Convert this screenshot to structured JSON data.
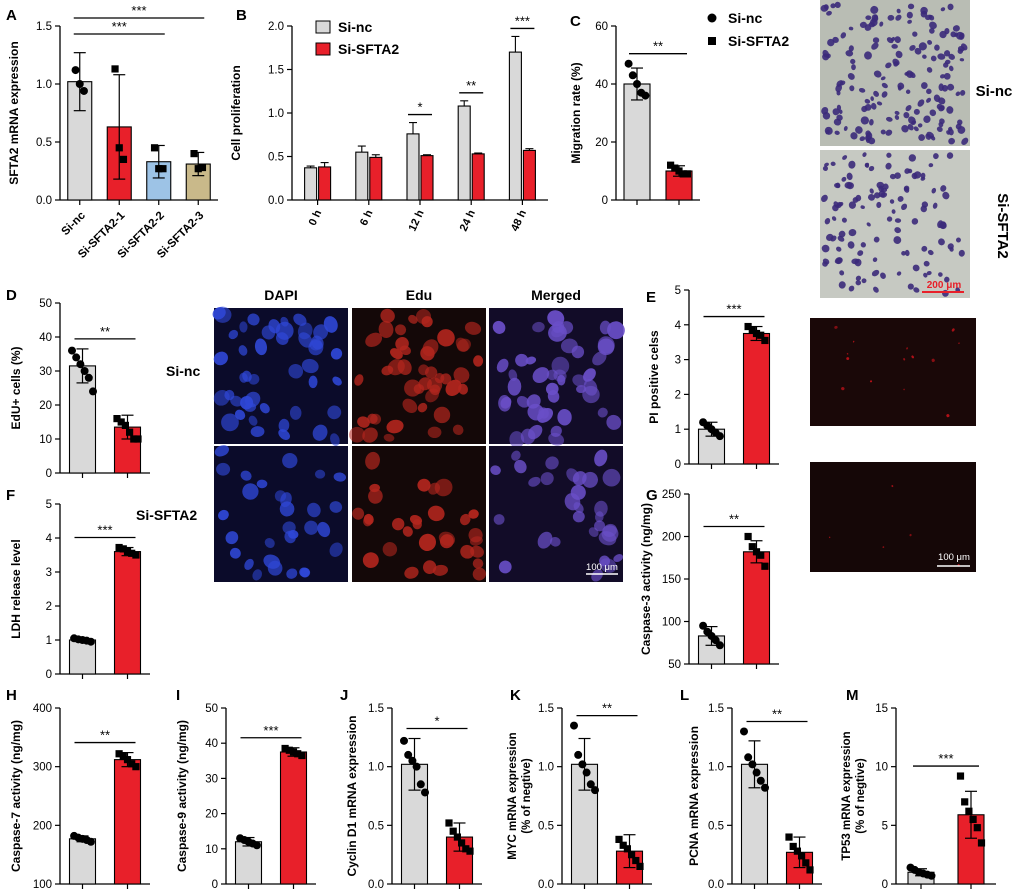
{
  "chart_data": [
    {
      "panel": "A",
      "type": "bar",
      "ylabel": "SFTA2 mRNA expression",
      "categories": [
        "Si-nc",
        "Si-SFTA2-1",
        "Si-SFTA2-2",
        "Si-SFTA2-3"
      ],
      "values": [
        1.02,
        0.63,
        0.33,
        0.31
      ],
      "errors": [
        0.25,
        0.45,
        0.14,
        0.1
      ],
      "colors": [
        "#d9d9d9",
        "#e8202a",
        "#9dc3e6",
        "#c9b98a"
      ],
      "points": [
        [
          1.12,
          1.0,
          0.94
        ],
        [
          1.13,
          0.45,
          0.35
        ],
        [
          0.45,
          0.27,
          0.27
        ],
        [
          0.4,
          0.27,
          0.28
        ]
      ],
      "ylim": [
        0,
        1.5
      ],
      "yticks": [
        0,
        0.5,
        1.0,
        1.5
      ],
      "sig": [
        {
          "from": 0,
          "to": 2,
          "label": "***"
        },
        {
          "from": 0,
          "to": 3,
          "label": "***"
        }
      ]
    },
    {
      "panel": "B",
      "type": "bar",
      "ylabel": "Cell proliferation",
      "categories": [
        "0 h",
        "6 h",
        "12 h",
        "24 h",
        "48 h"
      ],
      "series": [
        {
          "name": "Si-nc",
          "values": [
            0.37,
            0.55,
            0.76,
            1.08,
            1.7
          ],
          "errors": [
            0.02,
            0.07,
            0.13,
            0.06,
            0.18
          ],
          "color": "#d9d9d9"
        },
        {
          "name": "Si-SFTA2",
          "values": [
            0.38,
            0.49,
            0.51,
            0.53,
            0.57
          ],
          "errors": [
            0.05,
            0.03,
            0.01,
            0.01,
            0.02
          ],
          "color": "#e8202a"
        }
      ],
      "ylim": [
        0,
        2.0
      ],
      "yticks": [
        0,
        0.5,
        1.0,
        1.5,
        2.0
      ],
      "sig": [
        "",
        "",
        "*",
        "**",
        "***"
      ]
    },
    {
      "panel": "C",
      "type": "bar",
      "ylabel": "Migration rate (%)",
      "categories": [
        "Si-nc",
        "Si-SFTA2"
      ],
      "values": [
        40,
        10
      ],
      "errors": [
        5.5,
        1.8
      ],
      "colors": [
        "#d9d9d9",
        "#e8202a"
      ],
      "points": [
        [
          47,
          43,
          40,
          37,
          36
        ],
        [
          12,
          11,
          10,
          9,
          9
        ]
      ],
      "ylim": [
        0,
        60
      ],
      "yticks": [
        0,
        20,
        40,
        60
      ],
      "sig": [
        {
          "from": 0,
          "to": 1,
          "label": "**"
        }
      ]
    },
    {
      "panel": "D",
      "type": "bar",
      "ylabel": "EdU+ cells (%)",
      "categories": [
        "Si-nc",
        "Si-SFTA2"
      ],
      "values": [
        31.5,
        13.5
      ],
      "errors": [
        5,
        3.5
      ],
      "colors": [
        "#d9d9d9",
        "#e8202a"
      ],
      "points": [
        [
          36,
          34,
          32,
          30,
          28,
          24
        ],
        [
          16,
          15,
          14,
          12,
          10,
          10
        ]
      ],
      "ylim": [
        0,
        50
      ],
      "yticks": [
        0,
        10,
        20,
        30,
        40,
        50
      ],
      "sig": [
        {
          "from": 0,
          "to": 1,
          "label": "**"
        }
      ]
    },
    {
      "panel": "E",
      "type": "bar",
      "ylabel": "PI positive celss",
      "categories": [
        "Si-nc",
        "Si-SFTA2"
      ],
      "values": [
        1.0,
        3.75
      ],
      "errors": [
        0.2,
        0.2
      ],
      "colors": [
        "#d9d9d9",
        "#e8202a"
      ],
      "points": [
        [
          1.2,
          1.1,
          1.0,
          0.9,
          0.8
        ],
        [
          3.95,
          3.85,
          3.75,
          3.7,
          3.55
        ]
      ],
      "ylim": [
        0,
        5
      ],
      "yticks": [
        0,
        1,
        2,
        3,
        4,
        5
      ],
      "sig": [
        {
          "from": 0,
          "to": 1,
          "label": "***"
        }
      ]
    },
    {
      "panel": "F",
      "type": "bar",
      "ylabel": "LDH release level",
      "categories": [
        "Si-nc",
        "Si-SFTA2"
      ],
      "values": [
        1.0,
        3.6
      ],
      "errors": [
        0.07,
        0.12
      ],
      "colors": [
        "#d9d9d9",
        "#e8202a"
      ],
      "points": [
        [
          1.05,
          1.02,
          1.0,
          0.98,
          0.95
        ],
        [
          3.72,
          3.68,
          3.6,
          3.55,
          3.5
        ]
      ],
      "ylim": [
        0,
        5
      ],
      "yticks": [
        0,
        1,
        2,
        3,
        4,
        5
      ],
      "sig": [
        {
          "from": 0,
          "to": 1,
          "label": "***"
        }
      ]
    },
    {
      "panel": "G",
      "type": "bar",
      "ylabel": "Caspase-3 activity (ng/mg)",
      "categories": [
        "Si-nc",
        "Si-SFTA2"
      ],
      "values": [
        83,
        182
      ],
      "errors": [
        11,
        13
      ],
      "colors": [
        "#d9d9d9",
        "#e8202a"
      ],
      "points": [
        [
          95,
          88,
          83,
          78,
          72
        ],
        [
          200,
          188,
          182,
          178,
          165
        ]
      ],
      "ylim": [
        50,
        250
      ],
      "yticks": [
        50,
        100,
        150,
        200,
        250
      ],
      "sig": [
        {
          "from": 0,
          "to": 1,
          "label": "**"
        }
      ]
    },
    {
      "panel": "H",
      "type": "bar",
      "ylabel": "Caspase-7 activity (ng/mg)",
      "categories": [
        "Si-nc",
        "Si-SFTA2"
      ],
      "values": [
        177,
        312
      ],
      "errors": [
        5,
        12
      ],
      "colors": [
        "#d9d9d9",
        "#e8202a"
      ],
      "points": [
        [
          182,
          179,
          177,
          175,
          172
        ],
        [
          322,
          318,
          312,
          305,
          300
        ]
      ],
      "ylim": [
        100,
        400
      ],
      "yticks": [
        100,
        200,
        300,
        400
      ],
      "sig": [
        {
          "from": 0,
          "to": 1,
          "label": "**"
        }
      ]
    },
    {
      "panel": "I",
      "type": "bar",
      "ylabel": "Caspase-9 activity (ng/mg)",
      "categories": [
        "Si-nc",
        "Si-SFTA2"
      ],
      "values": [
        12,
        37.5
      ],
      "errors": [
        1.2,
        1.2
      ],
      "colors": [
        "#d9d9d9",
        "#e8202a"
      ],
      "points": [
        [
          13,
          12.5,
          12,
          11.5,
          11
        ],
        [
          38.5,
          38,
          37.5,
          37,
          36.5
        ]
      ],
      "ylim": [
        0,
        50
      ],
      "yticks": [
        0,
        10,
        20,
        30,
        40,
        50
      ],
      "sig": [
        {
          "from": 0,
          "to": 1,
          "label": "***"
        }
      ]
    },
    {
      "panel": "J",
      "type": "bar",
      "ylabel": "Cyclin D1 mRNA expression",
      "categories": [
        "Si-nc",
        "Si-SFTA2"
      ],
      "values": [
        1.02,
        0.4
      ],
      "errors": [
        0.22,
        0.12
      ],
      "colors": [
        "#d9d9d9",
        "#e8202a"
      ],
      "points": [
        [
          1.22,
          1.1,
          1.05,
          1.0,
          0.85,
          0.78
        ],
        [
          0.52,
          0.45,
          0.4,
          0.35,
          0.3,
          0.28
        ]
      ],
      "ylim": [
        0,
        1.5
      ],
      "yticks": [
        0,
        0.5,
        1.0,
        1.5
      ],
      "sig": [
        {
          "from": 0,
          "to": 1,
          "label": "*"
        }
      ]
    },
    {
      "panel": "K",
      "type": "bar",
      "ylabel": "MYC mRNA expression (% of negtive)",
      "categories": [
        "Si-nc",
        "Si-SFTA2"
      ],
      "values": [
        1.02,
        0.28
      ],
      "errors": [
        0.22,
        0.14
      ],
      "colors": [
        "#d9d9d9",
        "#e8202a"
      ],
      "points": [
        [
          1.35,
          1.1,
          1.02,
          0.95,
          0.85,
          0.8
        ],
        [
          0.38,
          0.33,
          0.3,
          0.25,
          0.2,
          0.15
        ]
      ],
      "ylim": [
        0,
        1.5
      ],
      "yticks": [
        0,
        0.5,
        1.0,
        1.5
      ],
      "sig": [
        {
          "from": 0,
          "to": 1,
          "label": "**"
        }
      ]
    },
    {
      "panel": "L",
      "type": "bar",
      "ylabel": "PCNA mRNA expression",
      "categories": [
        "Si-nc",
        "Si-SFTA2"
      ],
      "values": [
        1.02,
        0.27
      ],
      "errors": [
        0.2,
        0.13
      ],
      "colors": [
        "#d9d9d9",
        "#e8202a"
      ],
      "points": [
        [
          1.3,
          1.08,
          1.02,
          0.95,
          0.88,
          0.82
        ],
        [
          0.4,
          0.32,
          0.28,
          0.24,
          0.18,
          0.12
        ]
      ],
      "ylim": [
        0,
        1.5
      ],
      "yticks": [
        0,
        0.5,
        1.0,
        1.5
      ],
      "sig": [
        {
          "from": 0,
          "to": 1,
          "label": "**"
        }
      ]
    },
    {
      "panel": "M",
      "type": "bar",
      "ylabel": "TP53 mRNA expression (% of negtive)",
      "categories": [
        "Si-nc",
        "Si-SFTA2"
      ],
      "values": [
        1.0,
        5.9
      ],
      "errors": [
        0.3,
        2.0
      ],
      "colors": [
        "#d9d9d9",
        "#e8202a"
      ],
      "points": [
        [
          1.4,
          1.2,
          1.0,
          0.9,
          0.8,
          0.7
        ],
        [
          9.2,
          7.0,
          6.2,
          5.5,
          4.8,
          3.5
        ]
      ],
      "ylim": [
        0,
        15
      ],
      "yticks": [
        0,
        5,
        10,
        15
      ],
      "sig": [
        {
          "from": 0,
          "to": 1,
          "label": "***"
        }
      ]
    }
  ],
  "legend": {
    "series_names": [
      "Si-nc",
      "Si-SFTA2"
    ],
    "markers": [
      "circle",
      "square"
    ],
    "colors": {
      "si_nc": "#d9d9d9",
      "si_sfta2": "#e8202a",
      "dots": "#000000"
    }
  },
  "images": {
    "migration": {
      "row_labels": [
        "Si-nc",
        "Si-SFTA2"
      ],
      "scale_label": "200 μm",
      "stain_color": "#3b2a7a"
    },
    "edu": {
      "column_headers": [
        "DAPI",
        "Edu",
        "Merged"
      ],
      "row_labels": [
        "Si-nc",
        "Si-SFTA2"
      ],
      "scale_label": "100 μm",
      "colors": {
        "dapi": "#2f47d6",
        "edu": "#b3261e",
        "merged": "#6a4fc8"
      }
    },
    "pi": {
      "scale_label": "100 μm",
      "colors": {
        "pi": "#c3121a"
      }
    }
  }
}
